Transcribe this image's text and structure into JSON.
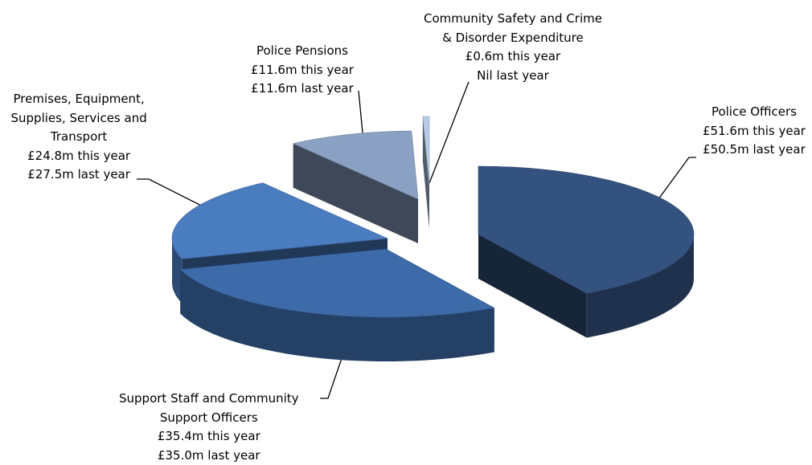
{
  "chart_data": {
    "type": "pie",
    "style": "3d-exploded",
    "units": "£m",
    "slices": [
      {
        "category": [
          "Police Officers"
        ],
        "this_year": 51.6,
        "last_year": 50.5,
        "this_year_text": "£51.6m this year",
        "last_year_text": "£50.5m last year",
        "color": "#34527f"
      },
      {
        "category": [
          "Support Staff and Community",
          "Support Officers"
        ],
        "this_year": 35.4,
        "last_year": 35.0,
        "this_year_text": "£35.4m this year",
        "last_year_text": "£35.0m last year",
        "color": "#3d6aa8"
      },
      {
        "category": [
          "Premises, Equipment,",
          "Supplies, Services and",
          "Transport"
        ],
        "this_year": 24.8,
        "last_year": 27.5,
        "this_year_text": "£24.8m this year",
        "last_year_text": "£27.5m last year",
        "color": "#4a7cc0"
      },
      {
        "category": [
          "Police Pensions"
        ],
        "this_year": 11.6,
        "last_year": 11.6,
        "this_year_text": "£11.6m this year",
        "last_year_text": "£11.6m last year",
        "color": "#8aa1c4"
      },
      {
        "category": [
          "Community Safety and Crime",
          "& Disorder Expenditure"
        ],
        "this_year": 0.6,
        "last_year": 0,
        "this_year_text": "£0.6m this year",
        "last_year_text": "Nil last year",
        "color": "#b7cbe6"
      }
    ]
  }
}
